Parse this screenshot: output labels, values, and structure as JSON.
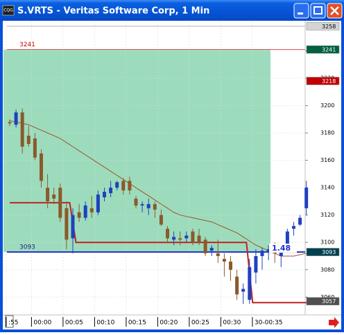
{
  "chart_data": {
    "type": "candlestick",
    "title": "S.VRTS - Veritas Software Corp, 1 Min",
    "categories": [
      ":55",
      null,
      null,
      null,
      "00:00",
      null,
      null,
      null,
      null,
      "00:05",
      null,
      null,
      null,
      null,
      "00:10",
      null,
      null,
      null,
      null,
      "00:15",
      null,
      null,
      null,
      null,
      "00:20",
      null,
      null,
      null,
      null,
      "00:25",
      null,
      null,
      null,
      null,
      "00:30",
      null,
      null,
      null,
      null,
      "30-00:35",
      null,
      null,
      null,
      null,
      null,
      null,
      null,
      null
    ],
    "open": [
      3188,
      3186,
      3195,
      3178,
      3176,
      3165,
      3140,
      3135,
      3140,
      3125,
      3103,
      3122,
      3118,
      3125,
      3122,
      3133,
      3136,
      3140,
      3145,
      3145,
      3132,
      3127,
      3125,
      3128,
      3120,
      3110,
      3102,
      3103,
      3103,
      3108,
      3105,
      3102,
      3094,
      3092,
      3088,
      3086,
      3075,
      3064,
      3058,
      3078,
      3090,
      3093,
      3096,
      3090,
      3095,
      3110,
      3113,
      3125
    ],
    "high": [
      3190,
      3197,
      3198,
      3185,
      3180,
      3168,
      3150,
      3140,
      3143,
      3130,
      3125,
      3128,
      3130,
      3134,
      3138,
      3140,
      3145,
      3145,
      3147,
      3148,
      3134,
      3130,
      3132,
      3130,
      3124,
      3112,
      3108,
      3108,
      3108,
      3110,
      3110,
      3104,
      3098,
      3102,
      3092,
      3090,
      3080,
      3070,
      3088,
      3095,
      3096,
      3098,
      3100,
      3097,
      3110,
      3115,
      3120,
      3145
    ],
    "low": [
      3185,
      3184,
      3165,
      3170,
      3160,
      3140,
      3125,
      3128,
      3115,
      3095,
      3092,
      3115,
      3116,
      3118,
      3120,
      3130,
      3133,
      3138,
      3135,
      3135,
      3125,
      3122,
      3120,
      3118,
      3112,
      3100,
      3098,
      3098,
      3100,
      3098,
      3098,
      3090,
      3090,
      3085,
      3075,
      3072,
      3058,
      3055,
      3055,
      3070,
      3080,
      3087,
      3085,
      3082,
      3093,
      3105,
      3112,
      3120
    ],
    "close": [
      3187,
      3195,
      3170,
      3172,
      3162,
      3145,
      3130,
      3132,
      3118,
      3102,
      3120,
      3118,
      3127,
      3122,
      3135,
      3137,
      3140,
      3144,
      3138,
      3138,
      3127,
      3128,
      3128,
      3124,
      3113,
      3103,
      3104,
      3102,
      3105,
      3100,
      3100,
      3092,
      3096,
      3090,
      3086,
      3080,
      3062,
      3066,
      3082,
      3090,
      3094,
      3095,
      3092,
      3095,
      3108,
      3112,
      3118,
      3140
    ],
    "up_color": "#2040c0",
    "down_color": "#8b5a2b",
    "overlays": [
      {
        "color": "#a0522d",
        "step": false,
        "values": [
          3189,
          3188,
          3187,
          3186,
          3184,
          3182,
          3180,
          3178,
          3176,
          3173,
          3170,
          3167,
          3164,
          3161,
          3158,
          3155,
          3152,
          3149,
          3146,
          3143,
          3140,
          3137,
          3134,
          3131,
          3128,
          3125,
          3122,
          3120,
          3119,
          3118,
          3117,
          3116,
          3115,
          3113,
          3111,
          3109,
          3107,
          3104,
          3101,
          3098,
          3096,
          3094,
          3092,
          3090,
          3090,
          3090,
          3091,
          3092
        ]
      },
      {
        "color": "#c02020",
        "step": true,
        "values": [
          3129,
          3129,
          3129,
          3129,
          3129,
          3129,
          3129,
          3129,
          3129,
          3129,
          3100,
          3100,
          3100,
          3100,
          3100,
          3100,
          3100,
          3100,
          3100,
          3100,
          3100,
          3100,
          3100,
          3100,
          3100,
          3100,
          3100,
          3100,
          3100,
          3100,
          3100,
          3100,
          3100,
          3100,
          3100,
          3100,
          3100,
          3100,
          3056,
          3056,
          3056,
          3056,
          3056,
          3056,
          3056,
          3056,
          3056,
          3056
        ]
      }
    ],
    "zone": {
      "from": 3093,
      "to": 3241,
      "color": "#9cdcbc"
    },
    "markers": [
      {
        "value": 3258,
        "box_color": "#d4d4d4",
        "text_color": "#000000",
        "line_color": "#b0b0b0"
      },
      {
        "value": 3241,
        "box_color": "#006040",
        "text_color": "#ffffff",
        "line_color": "#e05050",
        "label_color": "#c00000"
      },
      {
        "value": 3218,
        "box_color": "#c00000",
        "text_color": "#ffffff"
      },
      {
        "value": 3093,
        "box_color": "#004050",
        "text_color": "#ffffff",
        "line_color": "#2030c0",
        "label_color": "#202080"
      },
      {
        "value": 3057,
        "box_color": "#505050",
        "text_color": "#ffffff"
      }
    ],
    "annotation": "1.48",
    "ylim": [
      3047,
      3261
    ],
    "yticks": [
      3060,
      3080,
      3100,
      3120,
      3140,
      3160,
      3180,
      3200,
      3220,
      3240
    ],
    "grid": true
  }
}
